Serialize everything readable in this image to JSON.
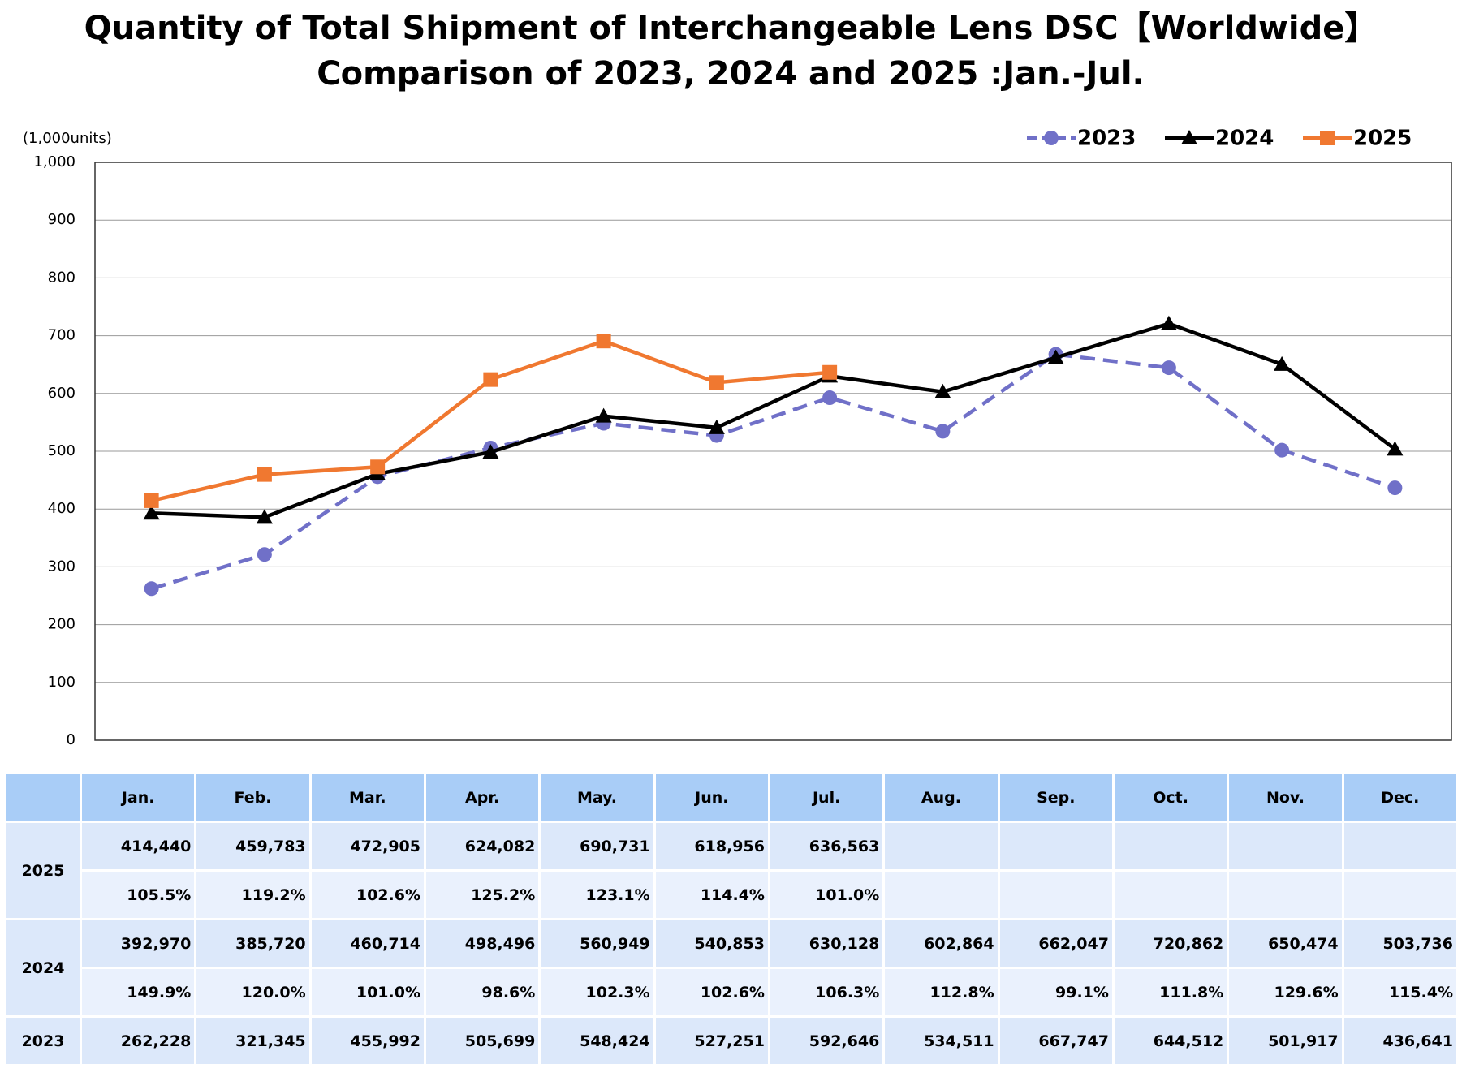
{
  "chart_data": {
    "type": "line",
    "title": "Quantity of Total Shipment of Interchangeable Lens DSC【Worldwide】",
    "subtitle": "Comparison of 2023, 2024 and 2025 :Jan.-Jul.",
    "y_label": "(1,000units)",
    "categories": [
      "Jan.",
      "Feb.",
      "Mar.",
      "Apr.",
      "May.",
      "Jun.",
      "Jul.",
      "Aug.",
      "Sep.",
      "Oct.",
      "Nov.",
      "Dec."
    ],
    "series": [
      {
        "name": "2023",
        "color": "#7070c8",
        "dash": true,
        "marker": "circle",
        "values": [
          262.228,
          321.345,
          455.992,
          505.699,
          548.424,
          527.251,
          592.646,
          534.511,
          667.747,
          644.512,
          501.917,
          436.641
        ]
      },
      {
        "name": "2024",
        "color": "#000000",
        "dash": false,
        "marker": "triangle",
        "values": [
          392.97,
          385.72,
          460.714,
          498.496,
          560.949,
          540.853,
          630.128,
          602.864,
          662.047,
          720.862,
          650.474,
          503.736
        ]
      },
      {
        "name": "2025",
        "color": "#f07830",
        "dash": false,
        "marker": "square",
        "values": [
          414.44,
          459.783,
          472.905,
          624.082,
          690.731,
          618.956,
          636.563,
          null,
          null,
          null,
          null,
          null
        ]
      }
    ],
    "ylim": [
      0,
      1000
    ],
    "yticks": [
      0,
      100,
      200,
      300,
      400,
      500,
      600,
      700,
      800,
      900,
      {
        "value": 1000,
        "label": "1,000"
      }
    ],
    "grid": true,
    "legend": "top-right"
  },
  "table": {
    "header": [
      "Jan.",
      "Feb.",
      "Mar.",
      "Apr.",
      "May.",
      "Jun.",
      "Jul.",
      "Aug.",
      "Sep.",
      "Oct.",
      "Nov.",
      "Dec."
    ],
    "rows": [
      {
        "label": "2025",
        "lines": [
          [
            "414,440",
            "459,783",
            "472,905",
            "624,082",
            "690,731",
            "618,956",
            "636,563"
          ],
          [
            "105.5%",
            "119.2%",
            "102.6%",
            "125.2%",
            "123.1%",
            "114.4%",
            "101.0%"
          ]
        ]
      },
      {
        "label": "2024",
        "lines": [
          [
            "392,970",
            "385,720",
            "460,714",
            "498,496",
            "560,949",
            "540,853",
            "630,128",
            "602,864",
            "662,047",
            "720,862",
            "650,474",
            "503,736"
          ],
          [
            "149.9%",
            "120.0%",
            "101.0%",
            "98.6%",
            "102.3%",
            "102.6%",
            "106.3%",
            "112.8%",
            "99.1%",
            "111.8%",
            "129.6%",
            "115.4%"
          ]
        ]
      },
      {
        "label": "2023",
        "lines": [
          [
            "262,228",
            "321,345",
            "455,992",
            "505,699",
            "548,424",
            "527,251",
            "592,646",
            "534,511",
            "667,747",
            "644,512",
            "501,917",
            "436,641"
          ]
        ]
      }
    ]
  }
}
